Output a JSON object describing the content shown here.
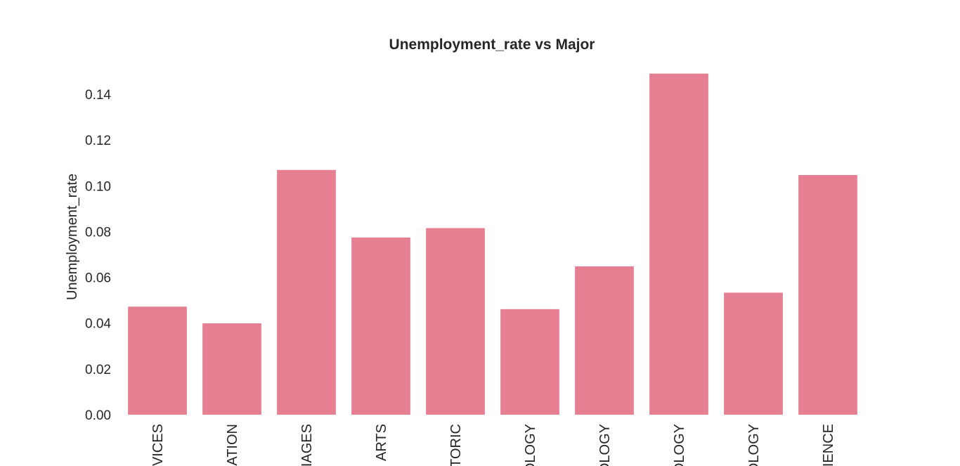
{
  "chart_data": {
    "type": "bar",
    "title": "Unemployment_rate vs Major",
    "xlabel": "",
    "ylabel": "Unemployment_rate",
    "ylim": [
      0,
      0.15
    ],
    "yticks": [
      "0.00",
      "0.02",
      "0.04",
      "0.06",
      "0.08",
      "0.10",
      "0.12",
      "0.14"
    ],
    "grid": false,
    "bar_color": "#e67f91",
    "categories": [
      "VICES",
      "ATION",
      "IAGES",
      "ARTS",
      "TORIC",
      "OLOGY",
      "OLOGY",
      "OLOGY",
      "OLOGY",
      "IENCE"
    ],
    "values": [
      0.0472,
      0.0399,
      0.1069,
      0.0774,
      0.0815,
      0.0461,
      0.0648,
      0.149,
      0.0533,
      0.1047
    ]
  }
}
